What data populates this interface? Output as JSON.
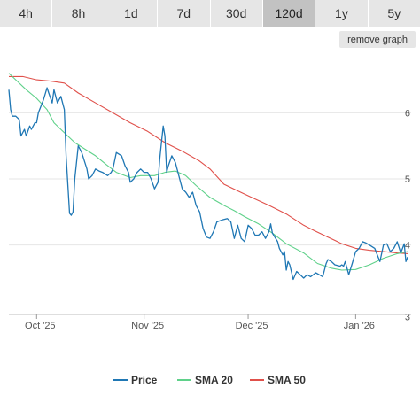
{
  "tabs": [
    {
      "label": "4h",
      "active": false
    },
    {
      "label": "8h",
      "active": false
    },
    {
      "label": "1d",
      "active": false
    },
    {
      "label": "7d",
      "active": false
    },
    {
      "label": "30d",
      "active": false
    },
    {
      "label": "120d",
      "active": true
    },
    {
      "label": "1y",
      "active": false
    },
    {
      "label": "5y",
      "active": false
    }
  ],
  "remove_graph_label": "remove graph",
  "chart_data": {
    "type": "line",
    "title": "",
    "xlabel": "",
    "ylabel": "",
    "x_ticks": [
      "Oct '25",
      "Nov '25",
      "Dec '25",
      "Jan '26"
    ],
    "x_tick_days": [
      8,
      39,
      69,
      100
    ],
    "x_range_days": [
      0,
      116
    ],
    "y_ticks": [
      3,
      4,
      5,
      6
    ],
    "ylim": [
      2.95,
      6.85
    ],
    "grid": true,
    "legend_position": "bottom",
    "colors": {
      "price": "#1f77b4",
      "sma20": "#5fd18a",
      "sma50": "#e0504a",
      "grid": "#e6e6e6"
    },
    "series": [
      {
        "name": "Price",
        "color": "#1f77b4",
        "points": [
          [
            0.0,
            6.35
          ],
          [
            0.5,
            6.05
          ],
          [
            1.0,
            5.95
          ],
          [
            2.0,
            5.95
          ],
          [
            3.0,
            5.9
          ],
          [
            3.5,
            5.65
          ],
          [
            4.5,
            5.75
          ],
          [
            5.0,
            5.65
          ],
          [
            6.0,
            5.8
          ],
          [
            6.5,
            5.75
          ],
          [
            7.5,
            5.85
          ],
          [
            8.0,
            5.85
          ],
          [
            8.5,
            6.0
          ],
          [
            10.0,
            6.2
          ],
          [
            11.0,
            6.38
          ],
          [
            11.5,
            6.3
          ],
          [
            12.5,
            6.15
          ],
          [
            13.0,
            6.35
          ],
          [
            14.0,
            6.15
          ],
          [
            15.0,
            6.25
          ],
          [
            16.0,
            6.05
          ],
          [
            16.5,
            5.35
          ],
          [
            17.5,
            4.48
          ],
          [
            18.0,
            4.45
          ],
          [
            18.5,
            4.5
          ],
          [
            19.0,
            5.0
          ],
          [
            20.0,
            5.5
          ],
          [
            21.0,
            5.4
          ],
          [
            22.5,
            5.15
          ],
          [
            23.0,
            5.0
          ],
          [
            24.0,
            5.05
          ],
          [
            25.0,
            5.15
          ],
          [
            26.0,
            5.12
          ],
          [
            27.0,
            5.1
          ],
          [
            28.5,
            5.05
          ],
          [
            29.5,
            5.1
          ],
          [
            30.0,
            5.15
          ],
          [
            31.0,
            5.4
          ],
          [
            32.5,
            5.35
          ],
          [
            33.5,
            5.2
          ],
          [
            34.5,
            5.1
          ],
          [
            35.0,
            4.95
          ],
          [
            36.0,
            5.0
          ],
          [
            37.0,
            5.1
          ],
          [
            38.0,
            5.15
          ],
          [
            39.0,
            5.1
          ],
          [
            40.0,
            5.1
          ],
          [
            41.0,
            5.0
          ],
          [
            42.0,
            4.85
          ],
          [
            43.0,
            4.95
          ],
          [
            43.5,
            5.3
          ],
          [
            44.0,
            5.55
          ],
          [
            44.5,
            5.8
          ],
          [
            45.0,
            5.65
          ],
          [
            45.5,
            5.1
          ],
          [
            46.0,
            5.2
          ],
          [
            47.0,
            5.35
          ],
          [
            48.0,
            5.25
          ],
          [
            49.0,
            5.05
          ],
          [
            50.0,
            4.85
          ],
          [
            51.0,
            4.8
          ],
          [
            52.0,
            4.72
          ],
          [
            53.0,
            4.8
          ],
          [
            54.0,
            4.6
          ],
          [
            55.0,
            4.5
          ],
          [
            56.0,
            4.25
          ],
          [
            57.0,
            4.12
          ],
          [
            58.0,
            4.1
          ],
          [
            59.0,
            4.2
          ],
          [
            60.0,
            4.35
          ],
          [
            61.5,
            4.38
          ],
          [
            63.0,
            4.4
          ],
          [
            64.0,
            4.35
          ],
          [
            65.0,
            4.1
          ],
          [
            66.0,
            4.3
          ],
          [
            67.0,
            4.1
          ],
          [
            68.0,
            4.05
          ],
          [
            69.0,
            4.3
          ],
          [
            70.0,
            4.25
          ],
          [
            71.0,
            4.15
          ],
          [
            72.0,
            4.15
          ],
          [
            73.0,
            4.2
          ],
          [
            74.0,
            4.1
          ],
          [
            75.0,
            4.2
          ],
          [
            75.5,
            4.32
          ],
          [
            76.0,
            4.18
          ],
          [
            77.5,
            4.05
          ],
          [
            78.0,
            3.95
          ],
          [
            79.0,
            3.85
          ],
          [
            79.5,
            3.9
          ],
          [
            80.0,
            3.62
          ],
          [
            80.5,
            3.75
          ],
          [
            81.0,
            3.7
          ],
          [
            82.0,
            3.48
          ],
          [
            83.0,
            3.6
          ],
          [
            84.0,
            3.55
          ],
          [
            85.0,
            3.5
          ],
          [
            86.0,
            3.55
          ],
          [
            87.0,
            3.52
          ],
          [
            88.5,
            3.58
          ],
          [
            89.5,
            3.55
          ],
          [
            90.5,
            3.52
          ],
          [
            91.5,
            3.72
          ],
          [
            92.0,
            3.78
          ],
          [
            93.0,
            3.75
          ],
          [
            94.0,
            3.7
          ],
          [
            95.5,
            3.68
          ],
          [
            96.0,
            3.7
          ],
          [
            96.5,
            3.68
          ],
          [
            97.0,
            3.75
          ],
          [
            98.0,
            3.55
          ],
          [
            99.0,
            3.72
          ],
          [
            100.0,
            3.9
          ],
          [
            101.0,
            3.95
          ],
          [
            102.0,
            4.05
          ],
          [
            103.0,
            4.03
          ],
          [
            104.0,
            4.0
          ],
          [
            105.5,
            3.95
          ],
          [
            106.0,
            3.88
          ],
          [
            107.0,
            3.75
          ],
          [
            108.0,
            4.0
          ],
          [
            109.0,
            4.02
          ],
          [
            110.0,
            3.9
          ],
          [
            111.0,
            3.95
          ],
          [
            112.0,
            4.05
          ],
          [
            113.0,
            3.88
          ],
          [
            114.0,
            4.02
          ],
          [
            114.5,
            3.75
          ],
          [
            115.0,
            3.82
          ]
        ]
      },
      {
        "name": "SMA 20",
        "color": "#5fd18a",
        "points": [
          [
            0.0,
            6.6
          ],
          [
            2.0,
            6.5
          ],
          [
            5.0,
            6.35
          ],
          [
            8.0,
            6.22
          ],
          [
            11.0,
            6.05
          ],
          [
            13.0,
            5.85
          ],
          [
            15.0,
            5.75
          ],
          [
            19.0,
            5.55
          ],
          [
            22.0,
            5.45
          ],
          [
            25.0,
            5.35
          ],
          [
            28.0,
            5.22
          ],
          [
            31.0,
            5.1
          ],
          [
            35.0,
            5.02
          ],
          [
            38.0,
            5.05
          ],
          [
            42.0,
            5.05
          ],
          [
            45.0,
            5.1
          ],
          [
            48.0,
            5.12
          ],
          [
            51.0,
            5.05
          ],
          [
            54.0,
            4.9
          ],
          [
            58.0,
            4.72
          ],
          [
            62.0,
            4.6
          ],
          [
            65.0,
            4.52
          ],
          [
            68.0,
            4.43
          ],
          [
            72.0,
            4.32
          ],
          [
            76.0,
            4.18
          ],
          [
            80.0,
            4.02
          ],
          [
            85.0,
            3.88
          ],
          [
            89.0,
            3.72
          ],
          [
            93.0,
            3.65
          ],
          [
            96.0,
            3.62
          ],
          [
            100.0,
            3.63
          ],
          [
            104.0,
            3.7
          ],
          [
            108.0,
            3.8
          ],
          [
            112.0,
            3.87
          ],
          [
            115.0,
            3.9
          ]
        ]
      },
      {
        "name": "SMA 50",
        "color": "#e0504a",
        "points": [
          [
            0.0,
            6.55
          ],
          [
            4.0,
            6.55
          ],
          [
            8.0,
            6.5
          ],
          [
            12.0,
            6.48
          ],
          [
            16.0,
            6.45
          ],
          [
            20.0,
            6.3
          ],
          [
            25.0,
            6.15
          ],
          [
            30.0,
            6.0
          ],
          [
            35.0,
            5.85
          ],
          [
            40.0,
            5.72
          ],
          [
            45.0,
            5.55
          ],
          [
            50.0,
            5.42
          ],
          [
            55.0,
            5.27
          ],
          [
            58.0,
            5.15
          ],
          [
            62.0,
            4.92
          ],
          [
            66.0,
            4.82
          ],
          [
            70.0,
            4.72
          ],
          [
            75.0,
            4.6
          ],
          [
            80.0,
            4.47
          ],
          [
            85.0,
            4.3
          ],
          [
            88.0,
            4.22
          ],
          [
            92.0,
            4.12
          ],
          [
            96.0,
            4.02
          ],
          [
            100.0,
            3.95
          ],
          [
            104.0,
            3.92
          ],
          [
            108.0,
            3.9
          ],
          [
            112.0,
            3.88
          ],
          [
            115.0,
            3.87
          ]
        ]
      }
    ]
  }
}
